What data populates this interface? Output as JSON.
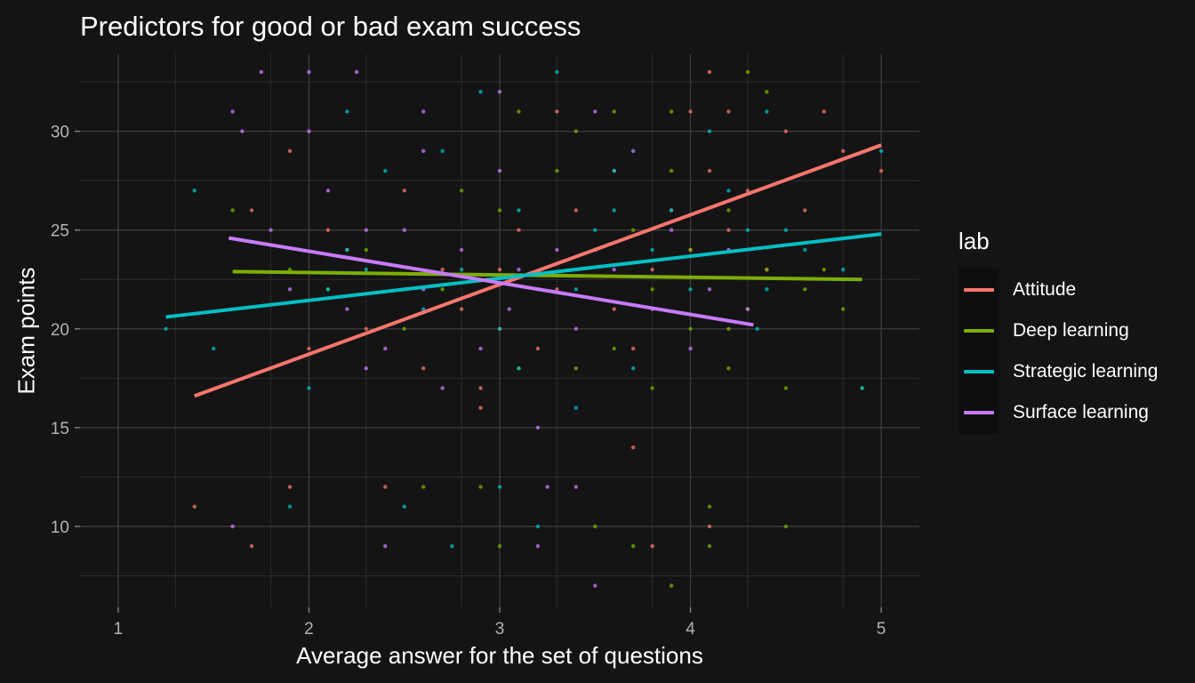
{
  "chart_data": {
    "type": "scatter",
    "title": "Predictors for good or bad exam success",
    "xlabel": "Average answer for the set of questions",
    "ylabel": "Exam points",
    "xlim": [
      0.8,
      5.2
    ],
    "ylim": [
      5.9,
      33.9
    ],
    "xticks": [
      1,
      2,
      3,
      4,
      5
    ],
    "yticks": [
      10,
      15,
      20,
      25,
      30
    ],
    "grid": true,
    "legend": {
      "title": "lab",
      "position": "right"
    },
    "background": "#141414",
    "series": [
      {
        "name": "Attitude",
        "color": "#F8766D",
        "trend": [
          [
            1.4,
            16.6
          ],
          [
            5.0,
            29.3
          ]
        ],
        "points": [
          [
            1.4,
            11
          ],
          [
            1.7,
            9
          ],
          [
            1.9,
            12
          ],
          [
            2.0,
            19
          ],
          [
            2.1,
            25
          ],
          [
            2.3,
            20
          ],
          [
            2.4,
            12
          ],
          [
            2.5,
            22
          ],
          [
            2.6,
            18
          ],
          [
            2.7,
            23
          ],
          [
            2.8,
            21
          ],
          [
            2.9,
            17
          ],
          [
            3.0,
            23
          ],
          [
            3.0,
            20
          ],
          [
            3.1,
            25
          ],
          [
            3.2,
            19
          ],
          [
            3.3,
            22
          ],
          [
            3.4,
            26
          ],
          [
            3.5,
            24
          ],
          [
            3.6,
            21
          ],
          [
            3.6,
            28
          ],
          [
            3.7,
            19
          ],
          [
            3.8,
            9
          ],
          [
            3.8,
            23
          ],
          [
            3.9,
            26
          ],
          [
            4.0,
            31
          ],
          [
            4.0,
            24
          ],
          [
            4.1,
            28
          ],
          [
            4.1,
            10
          ],
          [
            4.2,
            25
          ],
          [
            4.3,
            27
          ],
          [
            4.4,
            23
          ],
          [
            4.5,
            30
          ],
          [
            4.6,
            26
          ],
          [
            4.7,
            31
          ],
          [
            4.8,
            29
          ],
          [
            5.0,
            28
          ],
          [
            1.7,
            26
          ],
          [
            1.9,
            29
          ],
          [
            2.2,
            24
          ],
          [
            2.5,
            27
          ],
          [
            2.9,
            16
          ],
          [
            3.3,
            31
          ],
          [
            3.7,
            14
          ],
          [
            4.1,
            33
          ],
          [
            4.2,
            31
          ]
        ]
      },
      {
        "name": "Deep learning",
        "color": "#7CAE00",
        "trend": [
          [
            1.6,
            22.9
          ],
          [
            4.9,
            22.5
          ]
        ],
        "points": [
          [
            1.6,
            26
          ],
          [
            1.9,
            23
          ],
          [
            2.1,
            22
          ],
          [
            2.3,
            24
          ],
          [
            2.5,
            20
          ],
          [
            2.6,
            12
          ],
          [
            2.7,
            22
          ],
          [
            2.8,
            27
          ],
          [
            3.0,
            9
          ],
          [
            3.0,
            26
          ],
          [
            3.1,
            31
          ],
          [
            3.1,
            18
          ],
          [
            3.2,
            22
          ],
          [
            3.3,
            28
          ],
          [
            3.4,
            30
          ],
          [
            3.5,
            10
          ],
          [
            3.5,
            24
          ],
          [
            3.6,
            19
          ],
          [
            3.6,
            31
          ],
          [
            3.7,
            25
          ],
          [
            3.7,
            9
          ],
          [
            3.8,
            22
          ],
          [
            3.8,
            17
          ],
          [
            3.9,
            28
          ],
          [
            3.9,
            7
          ],
          [
            4.0,
            24
          ],
          [
            4.0,
            20
          ],
          [
            4.1,
            11
          ],
          [
            4.1,
            9
          ],
          [
            4.2,
            26
          ],
          [
            4.2,
            18
          ],
          [
            4.3,
            33
          ],
          [
            4.3,
            21
          ],
          [
            4.4,
            32
          ],
          [
            4.4,
            23
          ],
          [
            4.5,
            17
          ],
          [
            4.5,
            10
          ],
          [
            4.6,
            22
          ],
          [
            4.7,
            23
          ],
          [
            4.8,
            21
          ],
          [
            4.9,
            17
          ],
          [
            4.2,
            20
          ],
          [
            3.9,
            31
          ],
          [
            3.4,
            18
          ],
          [
            2.9,
            12
          ]
        ]
      },
      {
        "name": "Strategic learning",
        "color": "#00BFC4",
        "trend": [
          [
            1.25,
            20.6
          ],
          [
            5.0,
            24.8
          ]
        ],
        "points": [
          [
            1.25,
            20
          ],
          [
            1.4,
            27
          ],
          [
            1.5,
            19
          ],
          [
            1.9,
            11
          ],
          [
            2.0,
            17
          ],
          [
            2.1,
            22
          ],
          [
            2.2,
            31
          ],
          [
            2.3,
            23
          ],
          [
            2.4,
            28
          ],
          [
            2.5,
            11
          ],
          [
            2.6,
            21
          ],
          [
            2.7,
            29
          ],
          [
            2.8,
            23
          ],
          [
            2.9,
            32
          ],
          [
            3.0,
            20
          ],
          [
            3.0,
            12
          ],
          [
            3.1,
            26
          ],
          [
            3.1,
            18
          ],
          [
            3.2,
            10
          ],
          [
            3.3,
            33
          ],
          [
            3.4,
            22
          ],
          [
            3.4,
            16
          ],
          [
            3.5,
            25
          ],
          [
            3.6,
            28
          ],
          [
            3.7,
            18
          ],
          [
            3.8,
            24
          ],
          [
            3.9,
            26
          ],
          [
            4.0,
            22
          ],
          [
            4.1,
            30
          ],
          [
            4.2,
            27
          ],
          [
            4.3,
            25
          ],
          [
            4.4,
            31
          ],
          [
            4.4,
            22
          ],
          [
            4.5,
            25
          ],
          [
            4.6,
            24
          ],
          [
            4.8,
            23
          ],
          [
            4.9,
            17
          ],
          [
            5.0,
            29
          ],
          [
            4.35,
            20
          ],
          [
            2.75,
            9
          ],
          [
            2.2,
            24
          ],
          [
            3.6,
            26
          ]
        ]
      },
      {
        "name": "Surface learning",
        "color": "#C77CFF",
        "trend": [
          [
            1.58,
            24.6
          ],
          [
            4.33,
            20.2
          ]
        ],
        "points": [
          [
            1.6,
            31
          ],
          [
            1.65,
            30
          ],
          [
            1.75,
            33
          ],
          [
            1.8,
            25
          ],
          [
            1.9,
            22
          ],
          [
            2.0,
            33
          ],
          [
            2.0,
            30
          ],
          [
            2.1,
            27
          ],
          [
            2.2,
            21
          ],
          [
            2.25,
            33
          ],
          [
            2.3,
            18
          ],
          [
            2.4,
            19
          ],
          [
            2.4,
            9
          ],
          [
            2.5,
            25
          ],
          [
            2.6,
            22
          ],
          [
            2.6,
            31
          ],
          [
            2.7,
            17
          ],
          [
            2.8,
            24
          ],
          [
            2.9,
            19
          ],
          [
            3.0,
            32
          ],
          [
            3.0,
            28
          ],
          [
            3.05,
            21
          ],
          [
            3.1,
            23
          ],
          [
            3.2,
            15
          ],
          [
            3.25,
            12
          ],
          [
            3.3,
            24
          ],
          [
            3.4,
            20
          ],
          [
            3.4,
            12
          ],
          [
            3.5,
            7
          ],
          [
            3.5,
            31
          ],
          [
            3.6,
            23
          ],
          [
            3.7,
            29
          ],
          [
            3.8,
            21
          ],
          [
            3.9,
            25
          ],
          [
            4.0,
            19
          ],
          [
            4.1,
            22
          ],
          [
            4.2,
            24
          ],
          [
            4.3,
            21
          ],
          [
            1.6,
            10
          ],
          [
            2.3,
            25
          ],
          [
            2.6,
            29
          ],
          [
            3.2,
            9
          ]
        ]
      }
    ]
  }
}
